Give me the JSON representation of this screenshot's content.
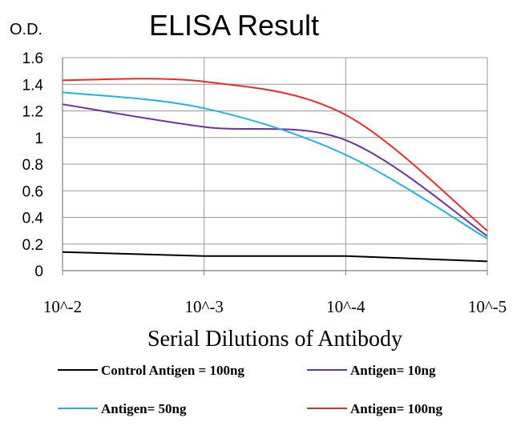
{
  "chart_data": {
    "type": "line",
    "title": "ELISA Result",
    "ylabel": "O.D.",
    "xlabel": "Serial Dilutions of Antibody",
    "categories": [
      "10^-2",
      "10^-3",
      "10^-4",
      "10^-5"
    ],
    "ylim": [
      0,
      1.6
    ],
    "yticks": [
      "0",
      "0.2",
      "0.4",
      "0.6",
      "0.8",
      "1",
      "1.2",
      "1.4",
      "1.6"
    ],
    "grid": true,
    "legend_position": "bottom",
    "series": [
      {
        "name": "Control Antigen = 100ng",
        "color": "#000000",
        "values": [
          0.14,
          0.11,
          0.11,
          0.07
        ]
      },
      {
        "name": "Antigen= 10ng",
        "color": "#7030a0",
        "values": [
          1.25,
          1.08,
          0.98,
          0.26
        ]
      },
      {
        "name": "Antigen= 50ng",
        "color": "#1fb4e6",
        "values": [
          1.34,
          1.22,
          0.87,
          0.24
        ]
      },
      {
        "name": "Antigen= 100ng",
        "color": "#ee2a2a",
        "values": [
          1.43,
          1.42,
          1.17,
          0.3
        ]
      }
    ]
  }
}
